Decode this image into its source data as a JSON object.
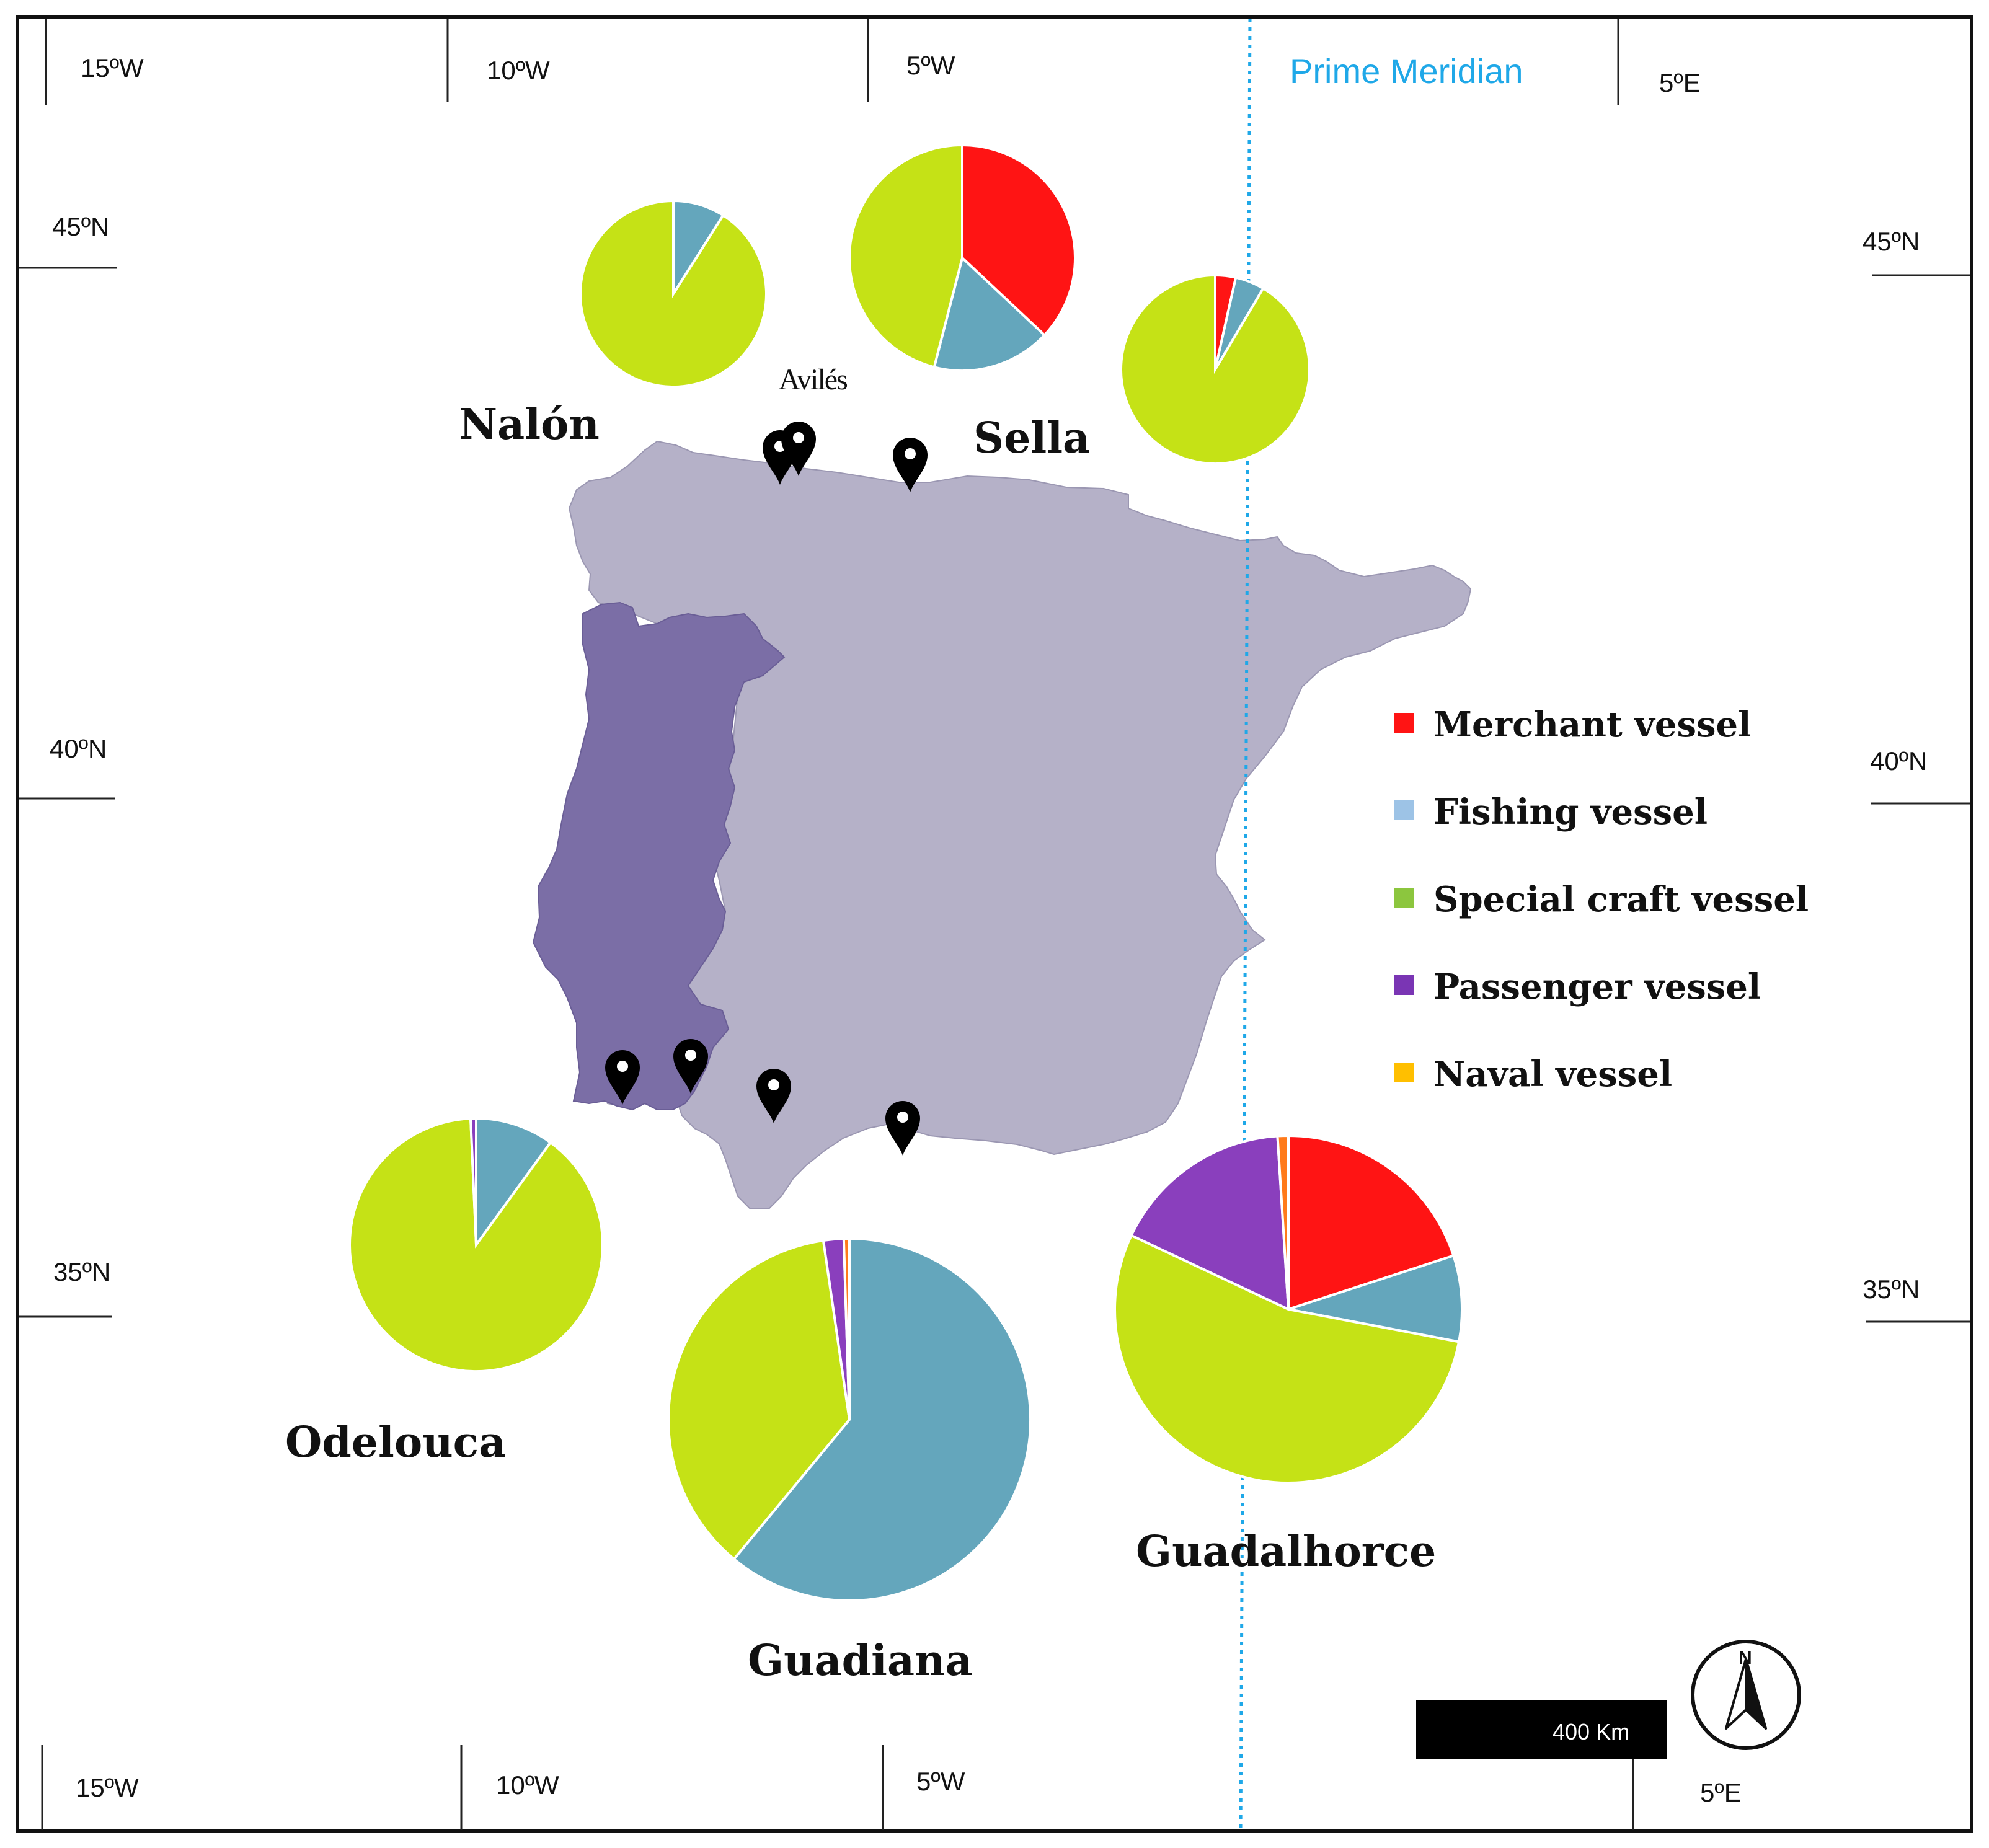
{
  "colors": {
    "merchant": "#ff1414",
    "fishing": "#64a6bc",
    "special_craft": "#c5e216",
    "passenger": "#8a3fbd",
    "naval": "#ff7a1a",
    "spain": "#b5b1c8",
    "portugal": "#7b6ea6",
    "meridian": "#1fa8e8",
    "frame": "#111111"
  },
  "map": {
    "top_longitudes": [
      "15ºW",
      "10ºW",
      "5ºW",
      "5ºE"
    ],
    "bottom_longitudes": [
      "15ºW",
      "10ºW",
      "5ºW",
      "5ºE"
    ],
    "left_latitudes": [
      "45ºN",
      "40ºN",
      "35ºN"
    ],
    "right_latitudes": [
      "45ºN",
      "40ºN",
      "35ºN"
    ],
    "prime_meridian_label": "Prime Meridian",
    "marker_count": 7,
    "marker_icon": "map-pin-icon",
    "scale_bar_label": "400 Km",
    "north_label": "N",
    "north_icon": "north-arrow-icon"
  },
  "sites": [
    {
      "name": "Nalón"
    },
    {
      "name": "Avilés"
    },
    {
      "name": "Sella"
    },
    {
      "name": "Odelouca"
    },
    {
      "name": "Guadiana"
    },
    {
      "name": "Guadalhorce"
    }
  ],
  "legend": [
    {
      "key": "merchant",
      "label": "Merchant vessel",
      "color": "#ff1414"
    },
    {
      "key": "fishing",
      "label": "Fishing vessel",
      "color": "#9dc3e6"
    },
    {
      "key": "special_craft",
      "label": "Special craft vessel",
      "color": "#8cc63e"
    },
    {
      "key": "passenger",
      "label": "Passenger vessel",
      "color": "#7a35b4"
    },
    {
      "key": "naval",
      "label": "Naval vessel",
      "color": "#ffbf00"
    }
  ],
  "chart_data": [
    {
      "type": "pie",
      "site": "Nalón",
      "categories": [
        "Merchant vessel",
        "Fishing vessel",
        "Special craft vessel",
        "Passenger vessel",
        "Naval vessel"
      ],
      "values": [
        0,
        9,
        91,
        0,
        0
      ]
    },
    {
      "type": "pie",
      "site": "Avilés",
      "categories": [
        "Merchant vessel",
        "Fishing vessel",
        "Special craft vessel",
        "Passenger vessel",
        "Naval vessel"
      ],
      "values": [
        37,
        17,
        46,
        0,
        0
      ]
    },
    {
      "type": "pie",
      "site": "Sella",
      "categories": [
        "Merchant vessel",
        "Fishing vessel",
        "Special craft vessel",
        "Passenger vessel",
        "Naval vessel"
      ],
      "values": [
        3.5,
        5,
        91.5,
        0,
        0
      ]
    },
    {
      "type": "pie",
      "site": "Odelouca",
      "categories": [
        "Merchant vessel",
        "Fishing vessel",
        "Special craft vessel",
        "Passenger vessel",
        "Naval vessel"
      ],
      "values": [
        0,
        10,
        89.3,
        0.7,
        0
      ]
    },
    {
      "type": "pie",
      "site": "Guadiana",
      "categories": [
        "Merchant vessel",
        "Fishing vessel",
        "Special craft vessel",
        "Passenger vessel",
        "Naval vessel"
      ],
      "values": [
        0,
        61,
        36.7,
        1.8,
        0.5
      ]
    },
    {
      "type": "pie",
      "site": "Guadalhorce",
      "categories": [
        "Merchant vessel",
        "Fishing vessel",
        "Special craft vessel",
        "Passenger vessel",
        "Naval vessel"
      ],
      "values": [
        20,
        8,
        54,
        17,
        1
      ]
    }
  ]
}
